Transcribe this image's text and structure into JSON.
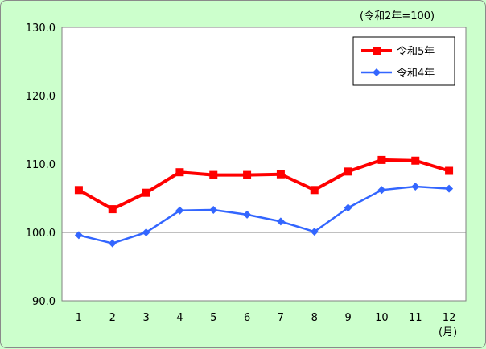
{
  "chart_data": {
    "type": "line",
    "unit_label": "(令和2年=100)",
    "x_unit_label": "(月)",
    "categories": [
      "1",
      "2",
      "3",
      "4",
      "5",
      "6",
      "7",
      "8",
      "9",
      "10",
      "11",
      "12"
    ],
    "ylim": [
      90,
      130
    ],
    "yticks": [
      "90.0",
      "100.0",
      "110.0",
      "120.0",
      "130.0"
    ],
    "ytick_values": [
      90,
      100,
      110,
      120,
      130
    ],
    "gridline_at": [
      100
    ],
    "legend_position": "top-right",
    "series": [
      {
        "name": "令和5年",
        "color": "#ff0000",
        "marker": "square",
        "values": [
          106.2,
          103.4,
          105.8,
          108.8,
          108.4,
          108.4,
          108.5,
          106.2,
          108.9,
          110.6,
          110.5,
          109.0
        ]
      },
      {
        "name": "令和4年",
        "color": "#3366ff",
        "marker": "diamond",
        "values": [
          99.6,
          98.4,
          100.0,
          103.2,
          103.3,
          102.6,
          101.6,
          100.1,
          103.6,
          106.2,
          106.7,
          106.4
        ]
      }
    ]
  }
}
